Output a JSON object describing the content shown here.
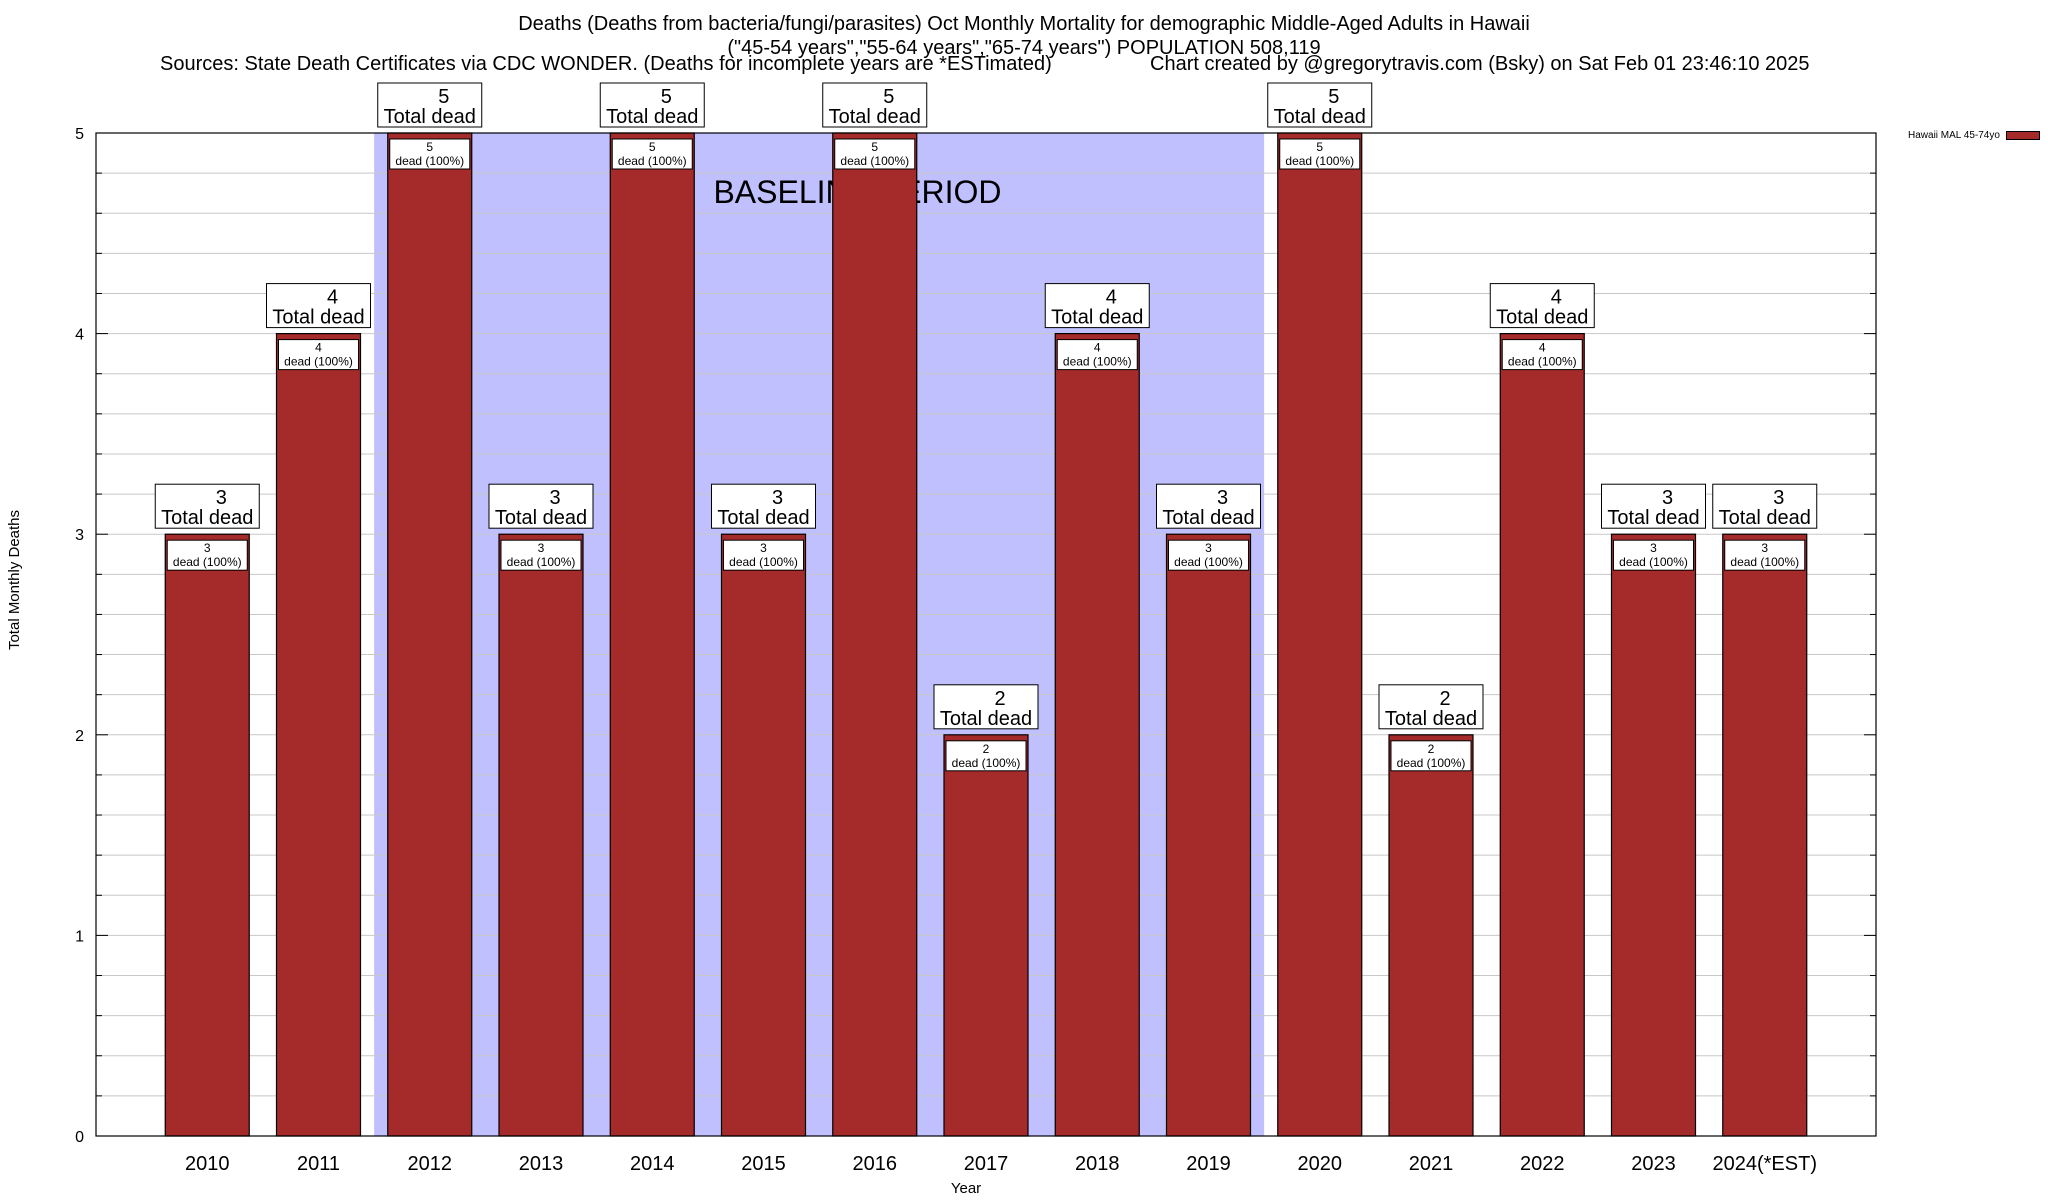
{
  "title": {
    "line1": "Deaths (Deaths from bacteria/fungi/parasites) Oct Monthly Mortality for demographic Middle-Aged Adults in Hawaii",
    "line2": "(\"45-54 years\",\"55-64 years\",\"65-74 years\") POPULATION 508,119",
    "sources": "Sources: State Death Certificates via CDC WONDER. (Deaths for incomplete years are *ESTimated)",
    "credit": "Chart created by @gregorytravis.com (Bsky) on Sat Feb 01 23:46:10 2025"
  },
  "legend": {
    "label": "Hawaii MAL 45-74yo"
  },
  "colors": {
    "bar": "#a52a2a",
    "baseline": "#c0c0ff",
    "grid": "#c8c8c8"
  },
  "chart_data": {
    "type": "bar",
    "xlabel": "Year",
    "ylabel": "Total Monthly Deaths",
    "ylim": [
      0,
      5
    ],
    "yticks": [
      0,
      1,
      2,
      3,
      4,
      5
    ],
    "grid": true,
    "legend_position": "top-right",
    "categories": [
      "2010",
      "2011",
      "2012",
      "2013",
      "2014",
      "2015",
      "2016",
      "2017",
      "2018",
      "2019",
      "2020",
      "2021",
      "2022",
      "2023",
      "2024(*EST)"
    ],
    "series": [
      {
        "name": "Hawaii MAL 45-74yo",
        "values": [
          3,
          4,
          5,
          3,
          5,
          3,
          5,
          2,
          4,
          3,
          5,
          2,
          4,
          3,
          3
        ]
      }
    ],
    "total_label_suffix": "Total dead",
    "inner_label_suffix": "dead (100%)",
    "baseline_period": {
      "label": "BASELINE PERIOD",
      "start": "2012",
      "end": "2019"
    }
  }
}
